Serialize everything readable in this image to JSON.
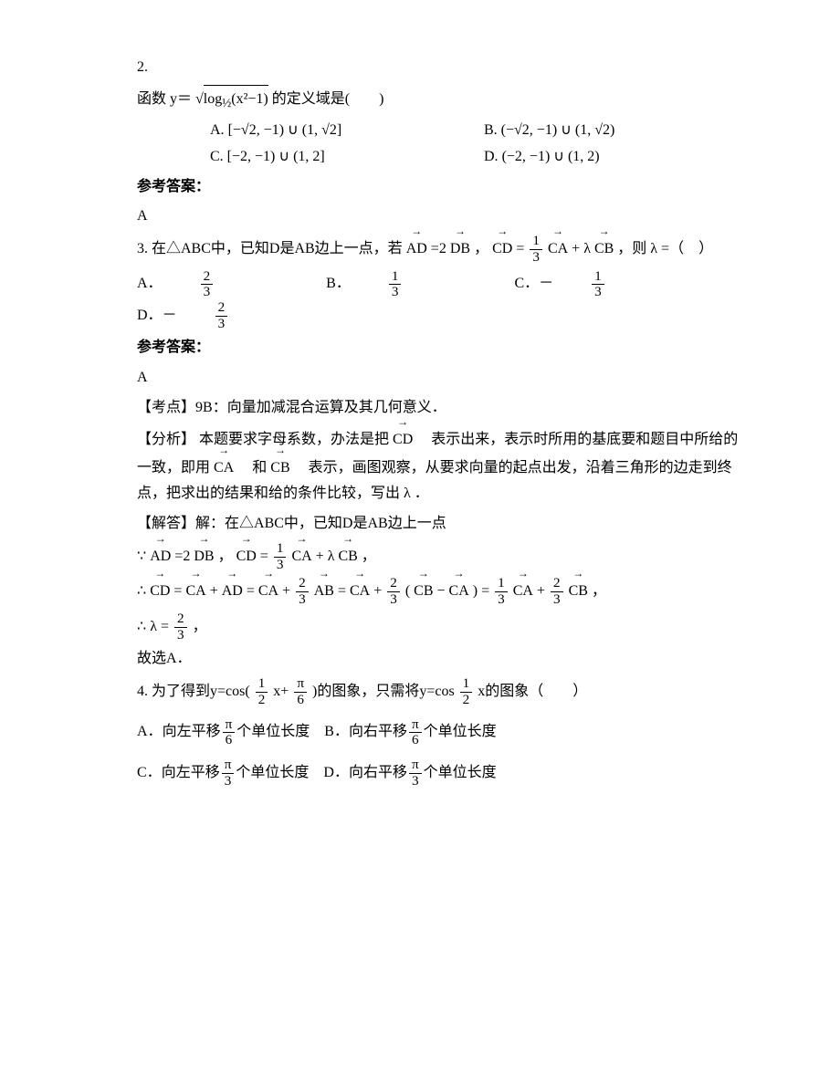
{
  "q2": {
    "num": "2.",
    "stem_prefix": "函数 y＝",
    "stem_inner": "log",
    "stem_base_half": "½",
    "stem_arg": "(x²−1)",
    "stem_suffix": "的定义域是(　　)",
    "A_label": "A.",
    "A_text": "[−√2, −1) ∪ (1, √2]",
    "B_label": "B.",
    "B_text": "(−√2, −1) ∪ (1, √2)",
    "C_label": "C.",
    "C_text": "[−2, −1) ∪ (1, 2]",
    "D_label": "D.",
    "D_text": "(−2, −1) ∪ (1, 2)",
    "ans_head": "参考答案：",
    "ans": "A"
  },
  "q3": {
    "num": "3.",
    "stem_p1": "在△ABC中，已知D是AB边上一点，若",
    "vec_AD": "AD",
    "eq1": " =2",
    "vec_DB": "DB",
    "sep": " ， ",
    "vec_CD": "CD",
    "eq2": "  =",
    "frac13_num": "1",
    "frac13_den": "3",
    "vec_CA": "CA",
    "plus_lambda": "+ λ ",
    "vec_CB": "CB",
    "stem_p2": "，则 λ =（　）",
    "A_label": "A．",
    "B_label": "B．",
    "C_label": "C．－",
    "D_label": "D．－",
    "frac23_num": "2",
    "frac23_den": "3",
    "frac13b_num": "1",
    "frac13b_den": "3",
    "ans_head": "参考答案：",
    "ans": "A",
    "kd_label": "【考点】",
    "kd": "9B：向量加减混合运算及其几何意义．",
    "fx_label": "【分析】",
    "fx_p1": "本题要求字母系数，办法是把",
    "fx_p2": "　表示出来，表示时所用的基底要和题目中所给的一致，即用",
    "fx_and": "　和",
    "fx_p3": "　表示，画图观察，从要求向量的起点出发，沿着三角形的边走到终点，把求出的结果和给的条件比较，写出 λ ．",
    "jd_label": "【解答】",
    "jd_p1": "解：在△ABC中，已知D是AB边上一点",
    "because": "∵",
    "therefore": "∴",
    "vec_AB": "AB",
    "eq_symbol": "=",
    "plus": "+",
    "minus": "−",
    "lparen": "(",
    "rparen": ")",
    "comma_cn": "，",
    "lambda_eq": "λ =",
    "conc": "故选A．"
  },
  "q4": {
    "num": "4.",
    "stem_p1": "为了得到y=cos(",
    "half_num": "1",
    "half_den": "2",
    "stem_x": " x+",
    "pi": "π",
    "six": "6",
    "three": "3",
    "stem_p2": ")的图象，只需将y=cos",
    "stem_p3": " x的图象（　　）",
    "A_label": "A．",
    "A_text1": "向左平移",
    "A_text2": "个单位长度",
    "B_label": "B．",
    "B_text1": "向右平移",
    "C_label": "C．",
    "C_text1": "向左平移",
    "D_label": "D．",
    "D_text1": "向右平移"
  }
}
